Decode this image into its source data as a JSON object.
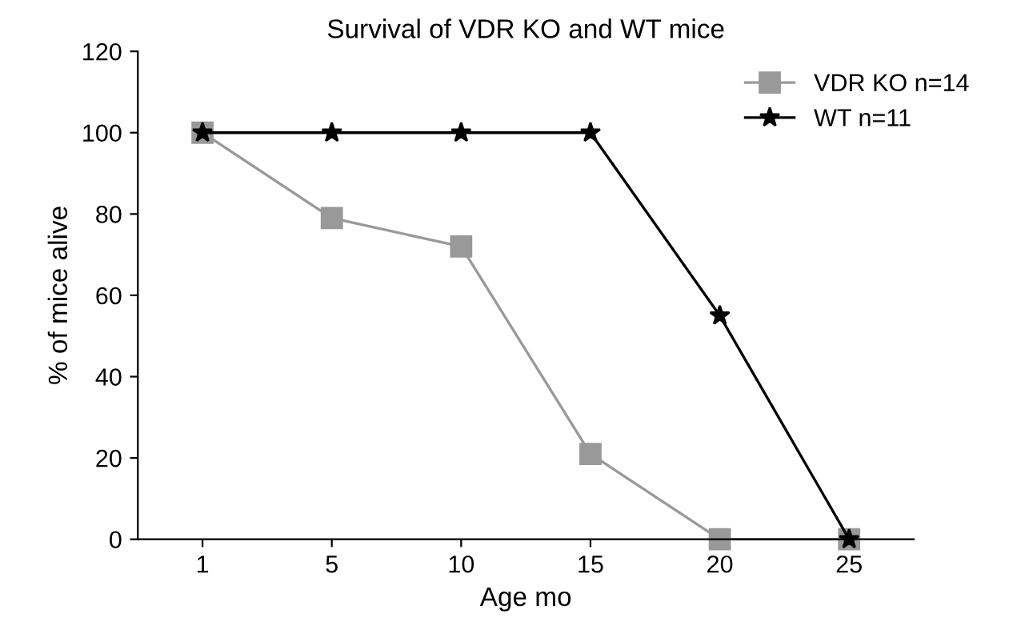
{
  "chart_data": {
    "type": "line",
    "title": "Survival of VDR KO and WT mice",
    "xlabel": "Age mo",
    "ylabel": "% of mice alive",
    "categories": [
      "1",
      "5",
      "10",
      "15",
      "20",
      "25"
    ],
    "series": [
      {
        "name": "VDR KO n=14",
        "color": "#999999",
        "marker": "square",
        "values": [
          100,
          79,
          72,
          21,
          0,
          0
        ]
      },
      {
        "name": "WT n=11",
        "color": "#000000",
        "marker": "star",
        "values": [
          100,
          100,
          100,
          100,
          55,
          0
        ]
      }
    ],
    "ylim": [
      0,
      120
    ],
    "yticks": [
      0,
      20,
      40,
      60,
      80,
      100,
      120
    ],
    "grid": false,
    "legend": "top right",
    "line_style": "solid"
  }
}
